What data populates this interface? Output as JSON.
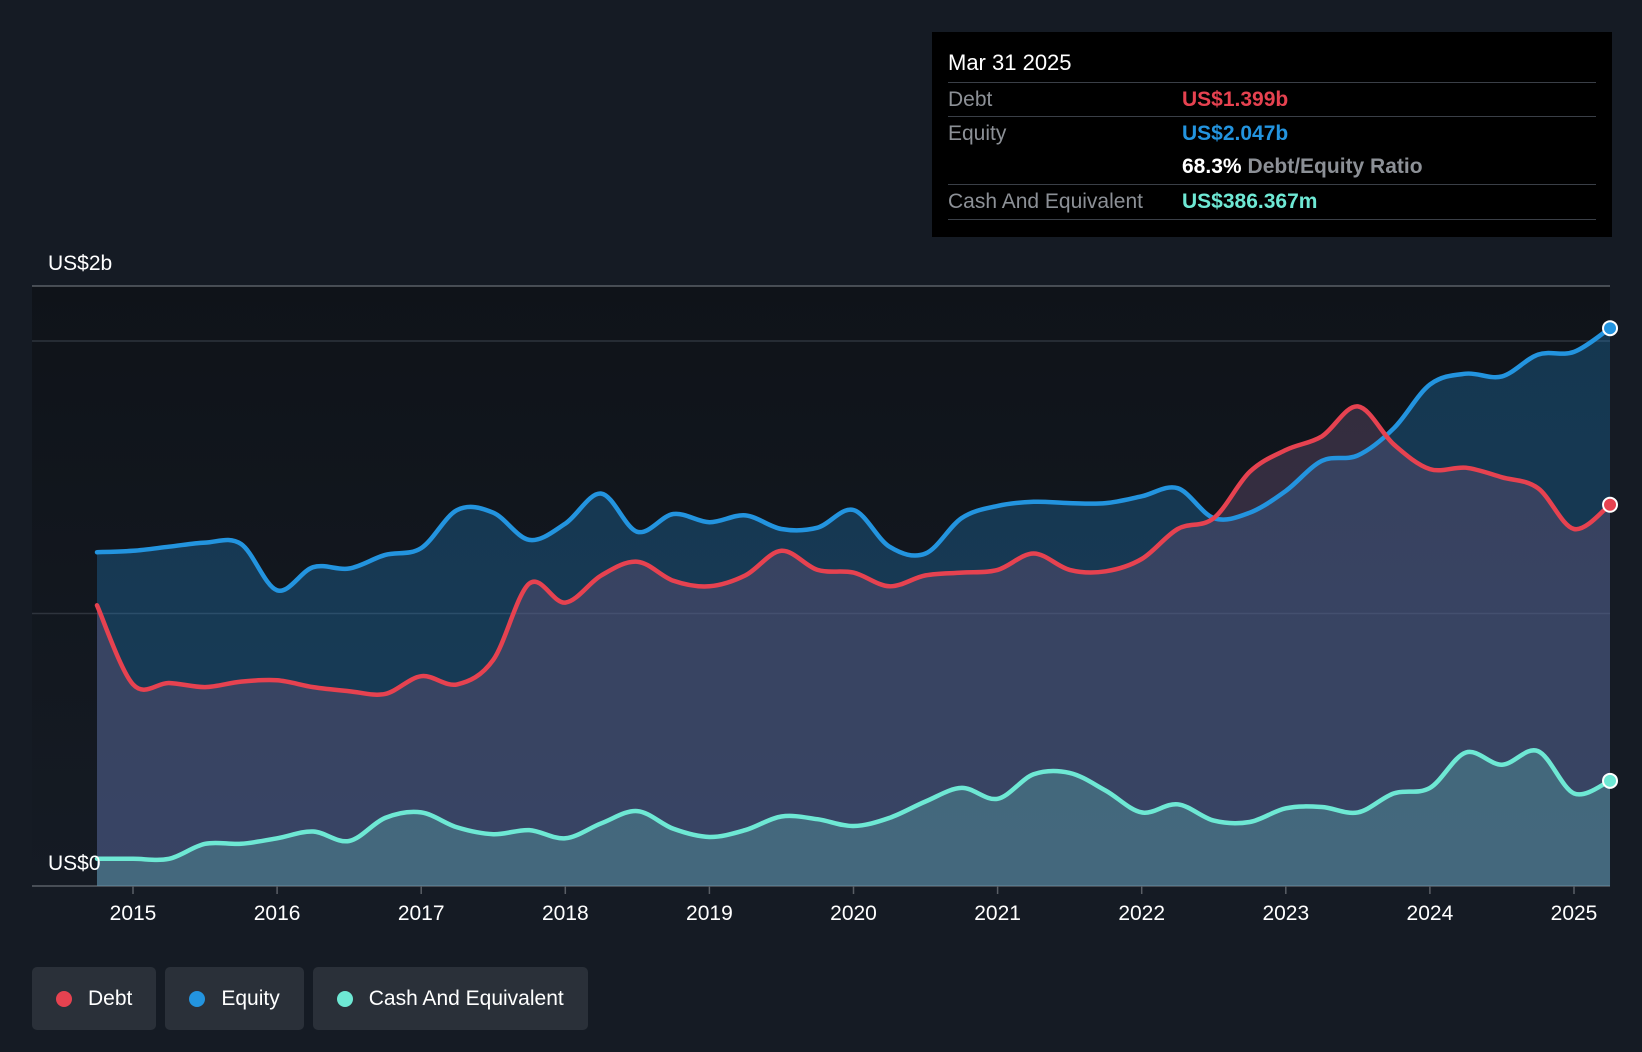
{
  "chart_data": {
    "type": "area",
    "title": "",
    "y_axis_labels": [
      "US$2b",
      "US$0"
    ],
    "ylim": [
      0,
      2.2
    ],
    "xlim": [
      2014.3,
      2025.25
    ],
    "x_ticks": [
      2015,
      2016,
      2017,
      2018,
      2019,
      2020,
      2021,
      2022,
      2023,
      2024,
      2025
    ],
    "x_tick_labels": [
      "2015",
      "2016",
      "2017",
      "2018",
      "2019",
      "2020",
      "2021",
      "2022",
      "2023",
      "2024",
      "2025"
    ],
    "legend_position": "bottom-left",
    "series": [
      {
        "name": "Equity",
        "color": "#2394df",
        "x": [
          2014.75,
          2015.0,
          2015.25,
          2015.5,
          2015.75,
          2016.0,
          2016.25,
          2016.5,
          2016.75,
          2017.0,
          2017.25,
          2017.5,
          2017.75,
          2018.0,
          2018.25,
          2018.5,
          2018.75,
          2019.0,
          2019.25,
          2019.5,
          2019.75,
          2020.0,
          2020.25,
          2020.5,
          2020.75,
          2021.0,
          2021.25,
          2021.5,
          2021.75,
          2022.0,
          2022.25,
          2022.5,
          2022.75,
          2023.0,
          2023.25,
          2023.5,
          2023.75,
          2024.0,
          2024.25,
          2024.5,
          2024.75,
          2025.0,
          2025.25
        ],
        "values": [
          1.225,
          1.23,
          1.245,
          1.26,
          1.255,
          1.085,
          1.17,
          1.165,
          1.215,
          1.24,
          1.38,
          1.37,
          1.27,
          1.33,
          1.44,
          1.3,
          1.365,
          1.335,
          1.36,
          1.31,
          1.315,
          1.38,
          1.245,
          1.22,
          1.35,
          1.395,
          1.41,
          1.405,
          1.405,
          1.43,
          1.46,
          1.35,
          1.37,
          1.45,
          1.56,
          1.58,
          1.68,
          1.84,
          1.88,
          1.87,
          1.95,
          1.96,
          2.047
        ]
      },
      {
        "name": "Debt",
        "color": "#e64250",
        "x": [
          2014.75,
          2015.0,
          2015.25,
          2015.5,
          2015.75,
          2016.0,
          2016.25,
          2016.5,
          2016.75,
          2017.0,
          2017.25,
          2017.5,
          2017.75,
          2018.0,
          2018.25,
          2018.5,
          2018.75,
          2019.0,
          2019.25,
          2019.5,
          2019.75,
          2020.0,
          2020.25,
          2020.5,
          2020.75,
          2021.0,
          2021.25,
          2021.5,
          2021.75,
          2022.0,
          2022.25,
          2022.5,
          2022.75,
          2023.0,
          2023.25,
          2023.5,
          2023.75,
          2024.0,
          2024.25,
          2024.5,
          2024.75,
          2025.0,
          2025.25
        ],
        "values": [
          1.03,
          0.74,
          0.745,
          0.73,
          0.75,
          0.755,
          0.73,
          0.715,
          0.705,
          0.77,
          0.74,
          0.83,
          1.11,
          1.04,
          1.14,
          1.19,
          1.12,
          1.1,
          1.14,
          1.23,
          1.16,
          1.15,
          1.1,
          1.14,
          1.15,
          1.16,
          1.22,
          1.16,
          1.155,
          1.2,
          1.31,
          1.35,
          1.52,
          1.6,
          1.65,
          1.76,
          1.62,
          1.53,
          1.535,
          1.5,
          1.46,
          1.31,
          1.399
        ]
      },
      {
        "name": "Cash And Equivalent",
        "color": "#6ee8d4",
        "x": [
          2014.75,
          2015.0,
          2015.25,
          2015.5,
          2015.75,
          2016.0,
          2016.25,
          2016.5,
          2016.75,
          2017.0,
          2017.25,
          2017.5,
          2017.75,
          2018.0,
          2018.25,
          2018.5,
          2018.75,
          2019.0,
          2019.25,
          2019.5,
          2019.75,
          2020.0,
          2020.25,
          2020.5,
          2020.75,
          2021.0,
          2021.25,
          2021.5,
          2021.75,
          2022.0,
          2022.25,
          2022.5,
          2022.75,
          2023.0,
          2023.25,
          2023.5,
          2023.75,
          2024.0,
          2024.25,
          2024.5,
          2024.75,
          2025.0,
          2025.25
        ],
        "values": [
          0.1,
          0.1,
          0.1,
          0.155,
          0.155,
          0.175,
          0.2,
          0.165,
          0.25,
          0.27,
          0.215,
          0.19,
          0.205,
          0.175,
          0.23,
          0.275,
          0.21,
          0.18,
          0.205,
          0.255,
          0.245,
          0.22,
          0.25,
          0.31,
          0.36,
          0.32,
          0.41,
          0.415,
          0.35,
          0.27,
          0.3,
          0.24,
          0.235,
          0.285,
          0.29,
          0.27,
          0.34,
          0.36,
          0.49,
          0.445,
          0.495,
          0.34,
          0.386
        ]
      }
    ]
  },
  "tooltip": {
    "date": "Mar 31 2025",
    "debt_label": "Debt",
    "debt_value": "US$1.399b",
    "equity_label": "Equity",
    "equity_value": "US$2.047b",
    "ratio_value": "68.3%",
    "ratio_label": "Debt/Equity Ratio",
    "cash_label": "Cash And Equivalent",
    "cash_value": "US$386.367m",
    "debt_color": "#e64250",
    "equity_color": "#2394df",
    "cash_color": "#6ee8d4"
  },
  "legend": [
    {
      "label": "Debt",
      "color": "#e64250"
    },
    {
      "label": "Equity",
      "color": "#2394df"
    },
    {
      "label": "Cash And Equivalent",
      "color": "#6ee8d4"
    }
  ]
}
